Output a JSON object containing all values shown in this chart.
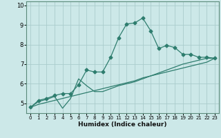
{
  "xlabel": "Humidex (Indice chaleur)",
  "background_color": "#cce8e8",
  "grid_color": "#aacccc",
  "line_color": "#2e7d6e",
  "x_data": [
    0,
    1,
    2,
    3,
    4,
    5,
    6,
    7,
    8,
    9,
    10,
    11,
    12,
    13,
    14,
    15,
    16,
    17,
    18,
    19,
    20,
    21,
    22,
    23
  ],
  "y_main": [
    4.8,
    5.15,
    5.25,
    5.4,
    5.5,
    5.5,
    5.95,
    6.7,
    6.6,
    6.6,
    7.35,
    8.35,
    9.05,
    9.1,
    9.35,
    8.7,
    7.8,
    7.95,
    7.85,
    7.5,
    7.5,
    7.35,
    7.35,
    7.3
  ],
  "y_line1": [
    4.8,
    5.1,
    5.2,
    5.35,
    4.75,
    5.25,
    6.25,
    5.9,
    5.6,
    5.6,
    5.75,
    5.9,
    6.0,
    6.1,
    6.25,
    6.4,
    6.55,
    6.7,
    6.85,
    7.0,
    7.1,
    7.2,
    7.3,
    7.3
  ],
  "y_line2": [
    4.8,
    4.95,
    5.05,
    5.15,
    5.25,
    5.35,
    5.45,
    5.55,
    5.65,
    5.75,
    5.85,
    5.95,
    6.05,
    6.15,
    6.3,
    6.4,
    6.5,
    6.6,
    6.7,
    6.8,
    6.9,
    7.0,
    7.1,
    7.3
  ],
  "ylim": [
    4.5,
    10.2
  ],
  "xlim": [
    -0.5,
    23.5
  ],
  "yticks": [
    5,
    6,
    7,
    8,
    9,
    10
  ],
  "xticks": [
    0,
    1,
    2,
    3,
    4,
    5,
    6,
    7,
    8,
    9,
    10,
    11,
    12,
    13,
    14,
    15,
    16,
    17,
    18,
    19,
    20,
    21,
    22,
    23
  ],
  "marker": "D",
  "markersize": 2.5
}
